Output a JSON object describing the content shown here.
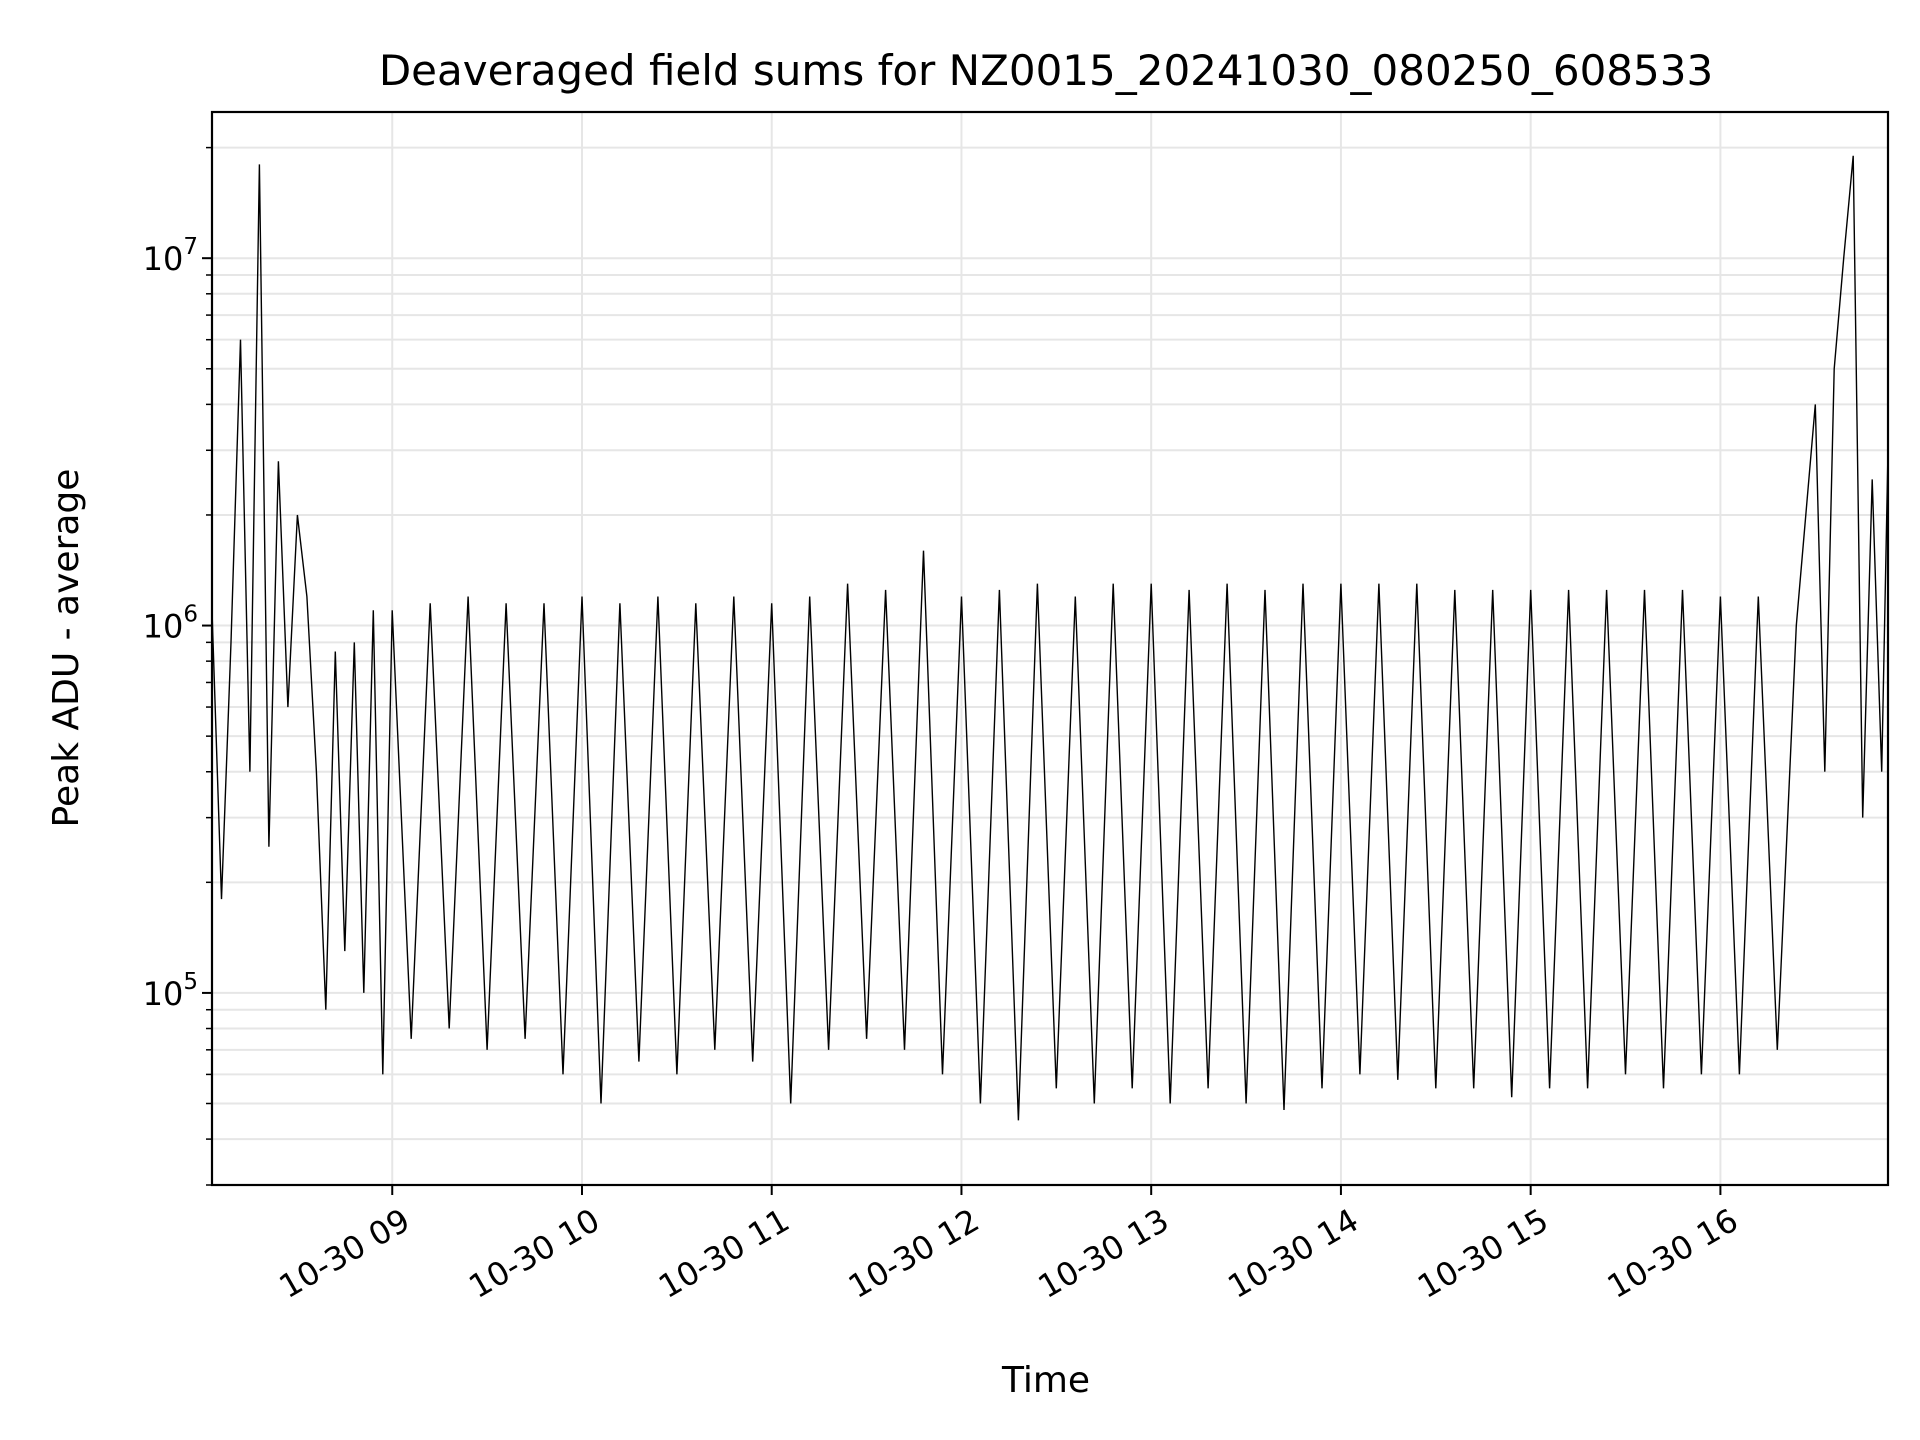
{
  "chart_data": {
    "type": "line",
    "title": "Deaveraged field sums for NZ0015_20241030_080250_608533",
    "xlabel": "Time",
    "ylabel": "Peak ADU - average",
    "x_scale": "time",
    "y_scale": "log",
    "xlim": [
      "2024-10-30 08:03",
      "2024-10-30 16:53"
    ],
    "ylim": [
      30000,
      25000000
    ],
    "grid": true,
    "x_ticks": [
      {
        "value": "2024-10-30 09:00",
        "label": "10-30 09"
      },
      {
        "value": "2024-10-30 10:00",
        "label": "10-30 10"
      },
      {
        "value": "2024-10-30 11:00",
        "label": "10-30 11"
      },
      {
        "value": "2024-10-30 12:00",
        "label": "10-30 12"
      },
      {
        "value": "2024-10-30 13:00",
        "label": "10-30 13"
      },
      {
        "value": "2024-10-30 14:00",
        "label": "10-30 14"
      },
      {
        "value": "2024-10-30 15:00",
        "label": "10-30 15"
      },
      {
        "value": "2024-10-30 16:00",
        "label": "10-30 16"
      }
    ],
    "y_ticks": [
      {
        "value": 100000,
        "base": "10",
        "exp": "5"
      },
      {
        "value": 1000000,
        "base": "10",
        "exp": "6"
      },
      {
        "value": 10000000,
        "base": "10",
        "exp": "7"
      }
    ],
    "series": [
      {
        "color": "#000000",
        "x": [
          "2024-10-30 08:03",
          "2024-10-30 08:06",
          "2024-10-30 08:09",
          "2024-10-30 08:12",
          "2024-10-30 08:15",
          "2024-10-30 08:18",
          "2024-10-30 08:21",
          "2024-10-30 08:24",
          "2024-10-30 08:27",
          "2024-10-30 08:30",
          "2024-10-30 08:33",
          "2024-10-30 08:36",
          "2024-10-30 08:39",
          "2024-10-30 08:42",
          "2024-10-30 08:45",
          "2024-10-30 08:48",
          "2024-10-30 08:51",
          "2024-10-30 08:54",
          "2024-10-30 08:57",
          "2024-10-30 09:00",
          "2024-10-30 09:06",
          "2024-10-30 09:12",
          "2024-10-30 09:18",
          "2024-10-30 09:24",
          "2024-10-30 09:30",
          "2024-10-30 09:36",
          "2024-10-30 09:42",
          "2024-10-30 09:48",
          "2024-10-30 09:54",
          "2024-10-30 10:00",
          "2024-10-30 10:06",
          "2024-10-30 10:12",
          "2024-10-30 10:18",
          "2024-10-30 10:24",
          "2024-10-30 10:30",
          "2024-10-30 10:36",
          "2024-10-30 10:42",
          "2024-10-30 10:48",
          "2024-10-30 10:54",
          "2024-10-30 11:00",
          "2024-10-30 11:06",
          "2024-10-30 11:12",
          "2024-10-30 11:18",
          "2024-10-30 11:24",
          "2024-10-30 11:30",
          "2024-10-30 11:36",
          "2024-10-30 11:42",
          "2024-10-30 11:48",
          "2024-10-30 11:54",
          "2024-10-30 12:00",
          "2024-10-30 12:06",
          "2024-10-30 12:12",
          "2024-10-30 12:18",
          "2024-10-30 12:24",
          "2024-10-30 12:30",
          "2024-10-30 12:36",
          "2024-10-30 12:42",
          "2024-10-30 12:48",
          "2024-10-30 12:54",
          "2024-10-30 13:00",
          "2024-10-30 13:06",
          "2024-10-30 13:12",
          "2024-10-30 13:18",
          "2024-10-30 13:24",
          "2024-10-30 13:30",
          "2024-10-30 13:36",
          "2024-10-30 13:42",
          "2024-10-30 13:48",
          "2024-10-30 13:54",
          "2024-10-30 14:00",
          "2024-10-30 14:06",
          "2024-10-30 14:12",
          "2024-10-30 14:18",
          "2024-10-30 14:24",
          "2024-10-30 14:30",
          "2024-10-30 14:36",
          "2024-10-30 14:42",
          "2024-10-30 14:48",
          "2024-10-30 14:54",
          "2024-10-30 15:00",
          "2024-10-30 15:06",
          "2024-10-30 15:12",
          "2024-10-30 15:18",
          "2024-10-30 15:24",
          "2024-10-30 15:30",
          "2024-10-30 15:36",
          "2024-10-30 15:42",
          "2024-10-30 15:48",
          "2024-10-30 15:54",
          "2024-10-30 16:00",
          "2024-10-30 16:06",
          "2024-10-30 16:12",
          "2024-10-30 16:18",
          "2024-10-30 16:24",
          "2024-10-30 16:30",
          "2024-10-30 16:33",
          "2024-10-30 16:36",
          "2024-10-30 16:39",
          "2024-10-30 16:42",
          "2024-10-30 16:45",
          "2024-10-30 16:48",
          "2024-10-30 16:51",
          "2024-10-30 16:53"
        ],
        "y": [
          1100000,
          180000,
          900000,
          6000000,
          400000,
          18000000,
          250000,
          2800000,
          600000,
          2000000,
          1200000,
          400000,
          90000,
          850000,
          130000,
          900000,
          100000,
          1100000,
          60000,
          1100000,
          75000,
          1150000,
          80000,
          1200000,
          70000,
          1150000,
          75000,
          1150000,
          60000,
          1200000,
          50000,
          1150000,
          65000,
          1200000,
          60000,
          1150000,
          70000,
          1200000,
          65000,
          1150000,
          50000,
          1200000,
          70000,
          1300000,
          75000,
          1250000,
          70000,
          1600000,
          60000,
          1200000,
          50000,
          1250000,
          45000,
          1300000,
          55000,
          1200000,
          50000,
          1300000,
          55000,
          1300000,
          50000,
          1250000,
          55000,
          1300000,
          50000,
          1250000,
          48000,
          1300000,
          55000,
          1300000,
          60000,
          1300000,
          58000,
          1300000,
          55000,
          1250000,
          55000,
          1250000,
          52000,
          1250000,
          55000,
          1250000,
          55000,
          1250000,
          60000,
          1250000,
          55000,
          1250000,
          60000,
          1200000,
          60000,
          1200000,
          70000,
          1000000,
          4000000,
          400000,
          5000000,
          10000000,
          19000000,
          300000,
          2500000,
          400000,
          3000000
        ]
      }
    ]
  }
}
